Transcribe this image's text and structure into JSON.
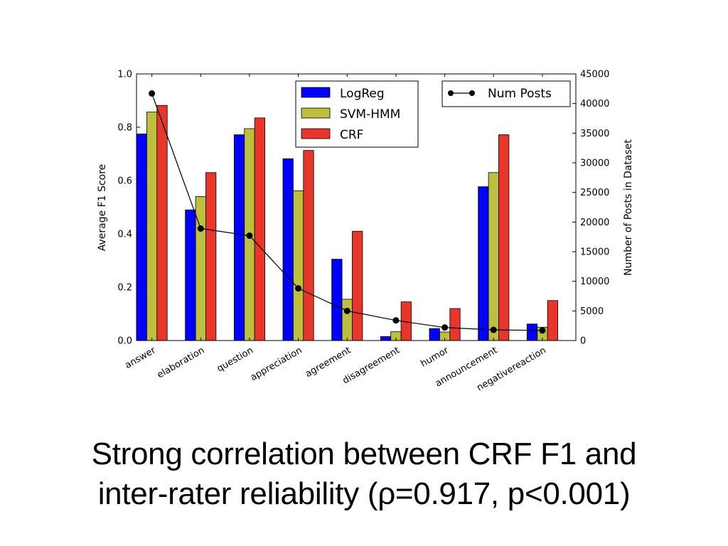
{
  "chart_data": {
    "type": "bar",
    "categories": [
      "answer",
      "elaboration",
      "question",
      "appreciation",
      "agreement",
      "disagreement",
      "humor",
      "announcement",
      "negativereaction"
    ],
    "series": [
      {
        "name": "LogReg",
        "color": "#0000ff",
        "values": [
          0.775,
          0.49,
          0.772,
          0.682,
          0.305,
          0.015,
          0.045,
          0.577,
          0.062
        ]
      },
      {
        "name": "SVM-HMM",
        "color": "#bfbf3f",
        "values": [
          0.857,
          0.54,
          0.795,
          0.562,
          0.155,
          0.033,
          0.032,
          0.63,
          0.05
        ]
      },
      {
        "name": "CRF",
        "color": "#e8362a",
        "values": [
          0.882,
          0.63,
          0.835,
          0.713,
          0.41,
          0.145,
          0.12,
          0.772,
          0.15
        ]
      }
    ],
    "line_series": {
      "name": "Num Posts",
      "color": "#000000",
      "values": [
        41700,
        18900,
        17700,
        8800,
        5000,
        3400,
        2200,
        1800,
        1700
      ]
    },
    "ylabel": "Average F1 Score",
    "ylim": [
      0,
      1.0
    ],
    "yticks": [
      "0.0",
      "0.2",
      "0.4",
      "0.6",
      "0.8",
      "1.0"
    ],
    "y2label": "Number of Posts in Dataset",
    "y2lim": [
      0,
      45000
    ],
    "y2ticks": [
      "0",
      "5000",
      "10000",
      "15000",
      "20000",
      "25000",
      "30000",
      "35000",
      "40000",
      "45000"
    ],
    "legend_bars": "top-center",
    "legend_line": "top-right",
    "grid": false
  },
  "caption": {
    "line1": "Strong correlation between CRF F1 and",
    "line2": "inter-rater reliability (ρ=0.917, p<0.001)"
  }
}
